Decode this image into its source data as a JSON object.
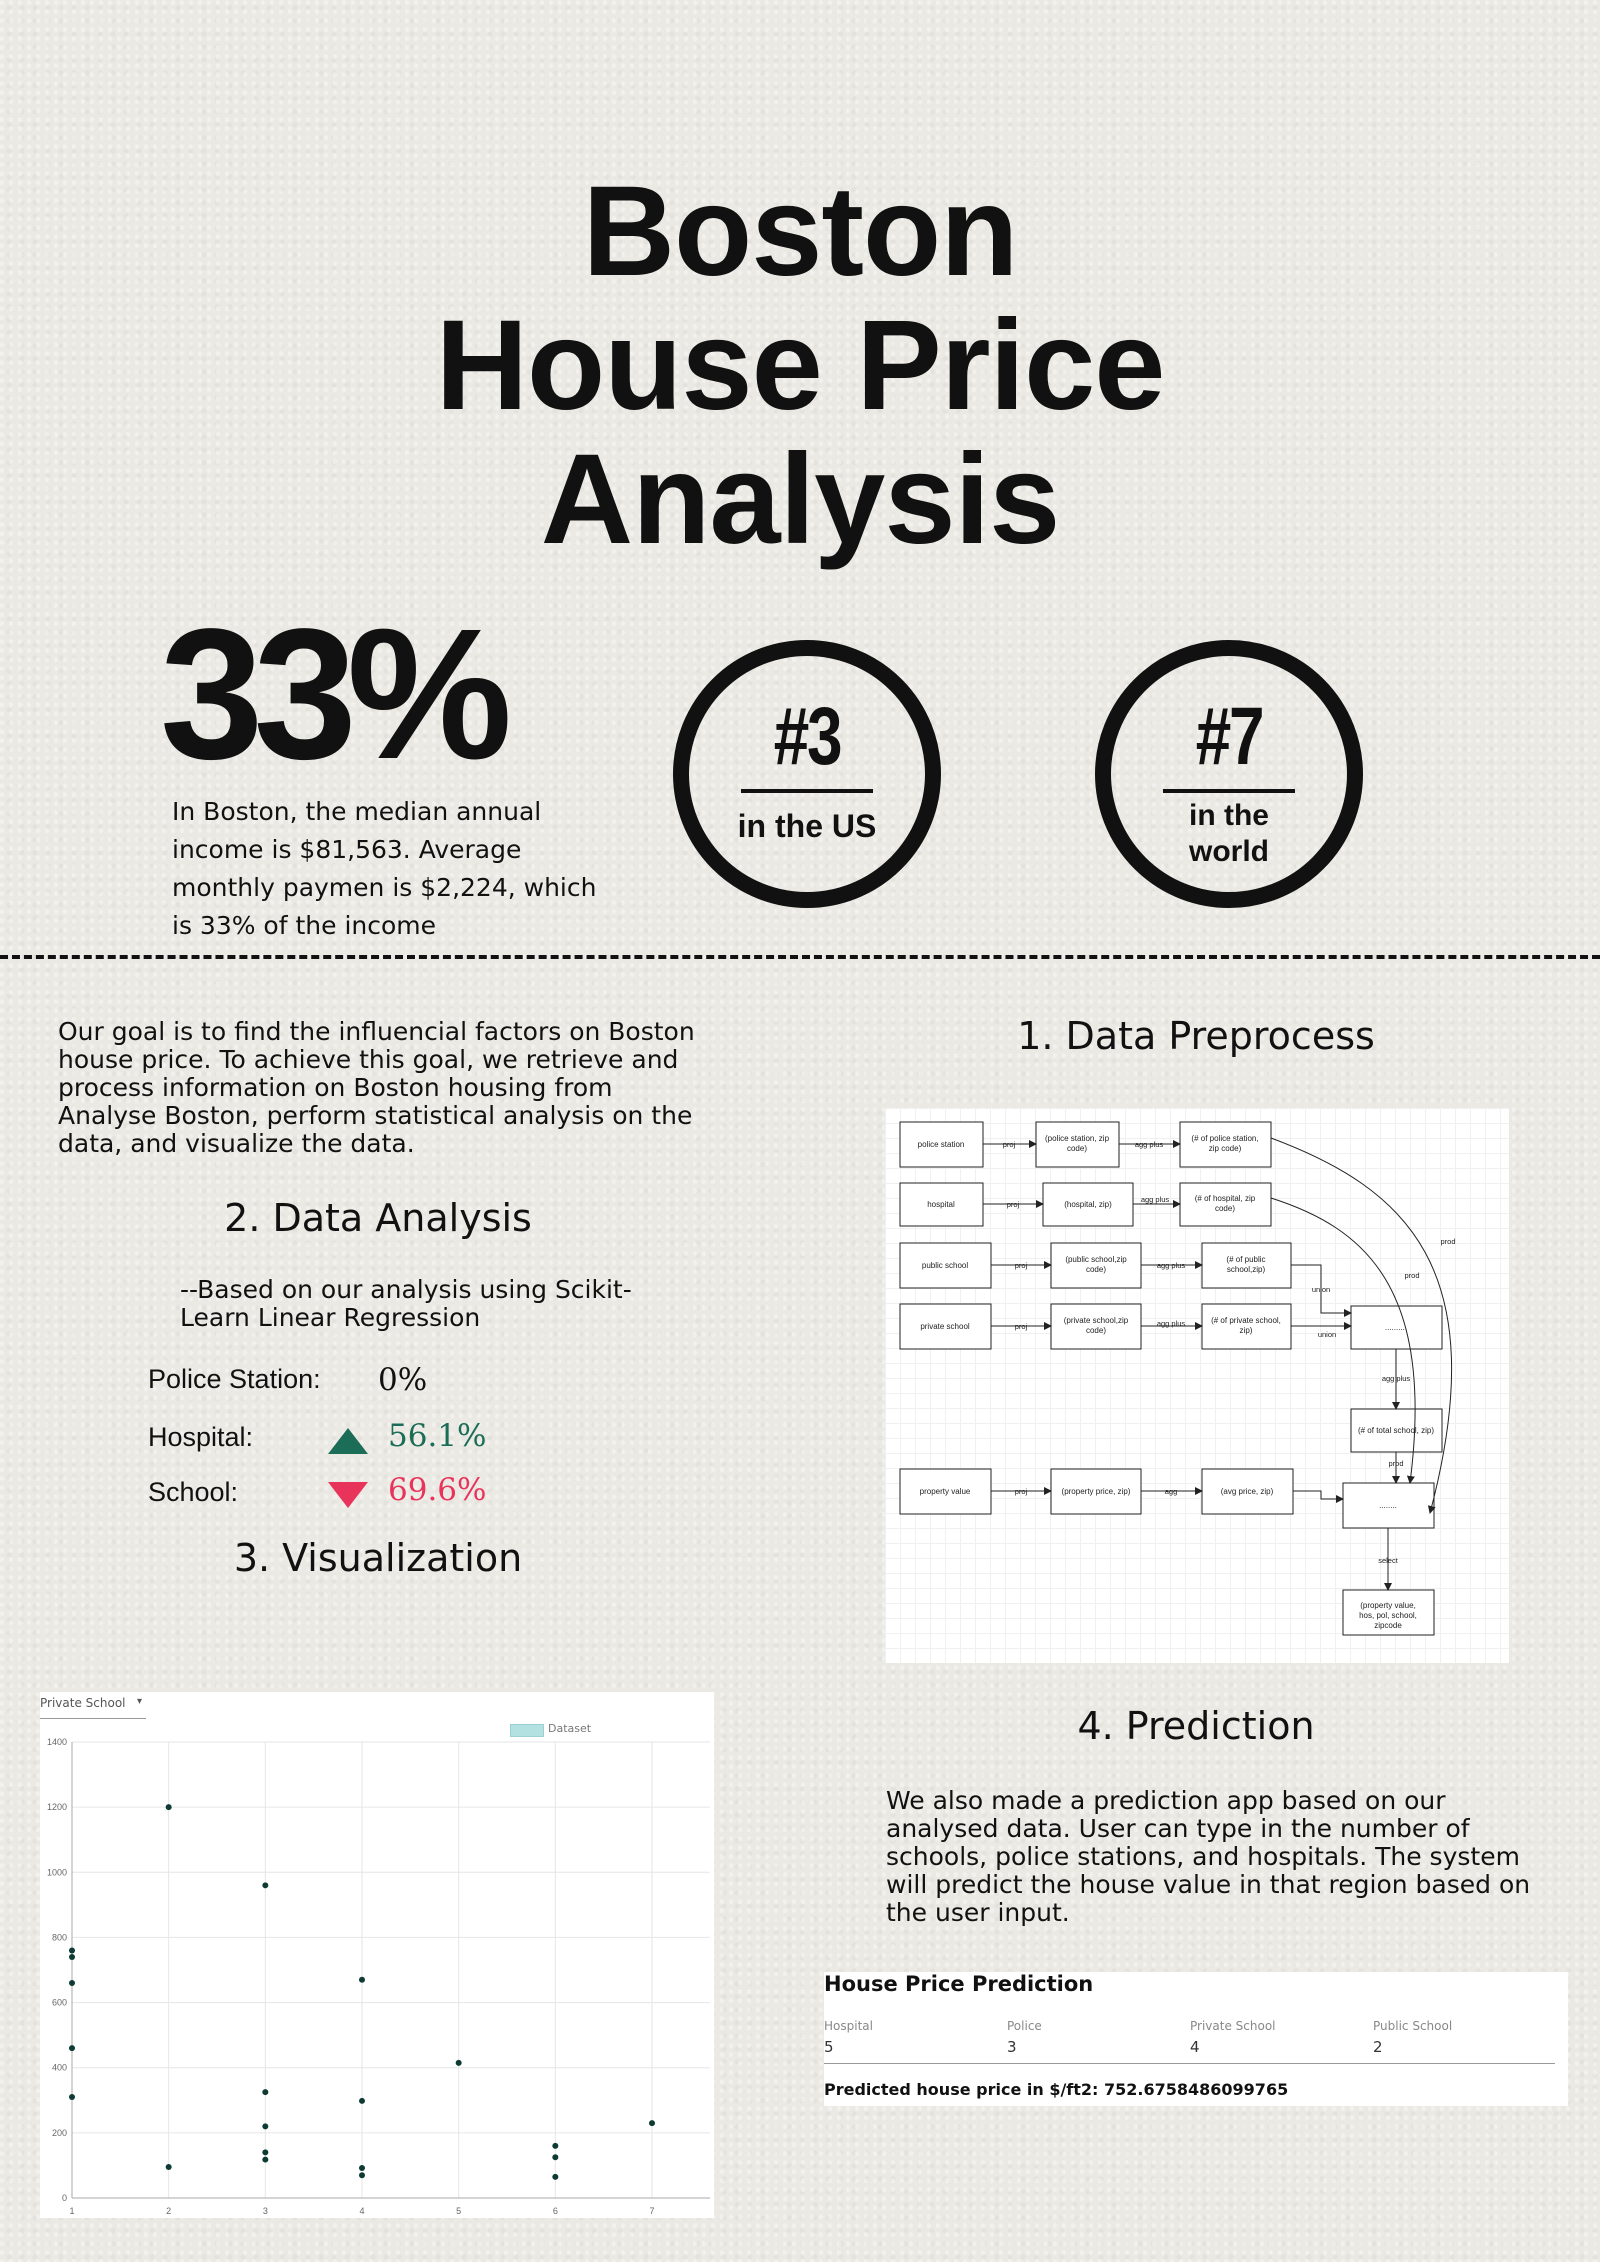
{
  "title": {
    "line1": "Boston",
    "line2": "House Price",
    "line3": "Analysis"
  },
  "stats": {
    "percent": "33%",
    "income_text": "In Boston, the median annual income is $81,563. Average monthly paymen is $2,224, which is 33% of the income"
  },
  "badges": [
    {
      "rank": "#3",
      "label": "in the US"
    },
    {
      "rank": "#7",
      "label_line1": "in the",
      "label_line2": "world"
    }
  ],
  "goal_text": "Our goal is to find the influencial factors on Boston house price. To achieve this goal, we retrieve and process information on Boston housing from Analyse Boston, perform statistical analysis on the data, and visualize the data.",
  "sections": {
    "preprocess": "1. Data Preprocess",
    "analysis": "2. Data Analysis",
    "visualization": "3. Visualization",
    "prediction": "4. Prediction"
  },
  "analysis": {
    "based_on": "--Based on our analysis using Scikit-Learn Linear Regression",
    "factors": [
      {
        "label": "Police Station:",
        "value": "0%",
        "direction": "none"
      },
      {
        "label": "Hospital:",
        "value": "56.1%",
        "direction": "up",
        "color": "#1b6d57"
      },
      {
        "label": "School:",
        "value": "69.6%",
        "direction": "down",
        "color": "#e8345a"
      }
    ]
  },
  "diagram": {
    "nodes": {
      "police_station": "police station",
      "police_zip": "(police station, zip code)",
      "police_count": "(# of police station, zip code)",
      "hospital": "hospital",
      "hospital_zip": "(hospital, zip)",
      "hospital_count": "(# of hospital, zip code)",
      "public_school": "public school",
      "public_zip": "(public school,zip code)",
      "public_count": "(# of public school,zip)",
      "private_school": "private school",
      "private_zip": "(private school,zip code)",
      "private_count": "(# of private school, zip)",
      "union_box": "..........",
      "total_school": "(# of total school, zip)",
      "property_value": "property value",
      "property_zip": "(property price, zip)",
      "avg_price": "(avg price, zip)",
      "join_box": "........",
      "final": "(property value, hos, pol, school, zipcode"
    },
    "edges": {
      "proj": "proj",
      "agg_plus": "agg plus",
      "agg": "agg",
      "union": "union",
      "prod": "prod",
      "select": "select"
    }
  },
  "scatter": {
    "dropdown": "Private School",
    "legend": "Dataset",
    "legend_color": "#b3e0e0",
    "point_color": "#0d3b34"
  },
  "chart_data": {
    "type": "scatter",
    "title": "",
    "xlabel": "",
    "ylabel": "",
    "xlim": [
      1,
      7.6
    ],
    "ylim": [
      0,
      1400
    ],
    "x_ticks": [
      1,
      2,
      3,
      4,
      5,
      6,
      7
    ],
    "y_ticks": [
      0,
      200,
      400,
      600,
      800,
      1000,
      1200,
      1400
    ],
    "series": [
      {
        "name": "Dataset",
        "points": [
          [
            1,
            760
          ],
          [
            1,
            740
          ],
          [
            1,
            660
          ],
          [
            1,
            460
          ],
          [
            1,
            310
          ],
          [
            2,
            1200
          ],
          [
            2,
            95
          ],
          [
            3,
            960
          ],
          [
            3,
            325
          ],
          [
            3,
            220
          ],
          [
            3,
            140
          ],
          [
            3,
            118
          ],
          [
            4,
            670
          ],
          [
            4,
            298
          ],
          [
            4,
            92
          ],
          [
            4,
            70
          ],
          [
            5,
            415
          ],
          [
            6,
            160
          ],
          [
            6,
            125
          ],
          [
            6,
            65
          ],
          [
            7,
            230
          ]
        ]
      }
    ]
  },
  "prediction": {
    "text": "We also made a prediction app based on our analysed data. User can type in the number of schools, police stations, and hospitals. The system will predict the house value in that region based on the user input.",
    "app_title": "House Price Prediction",
    "fields": [
      {
        "label": "Hospital",
        "value": "5"
      },
      {
        "label": "Police",
        "value": "3"
      },
      {
        "label": "Private School",
        "value": "4"
      },
      {
        "label": "Public School",
        "value": "2"
      }
    ],
    "result": "Predicted house price in $/ft2: 752.6758486099765"
  }
}
